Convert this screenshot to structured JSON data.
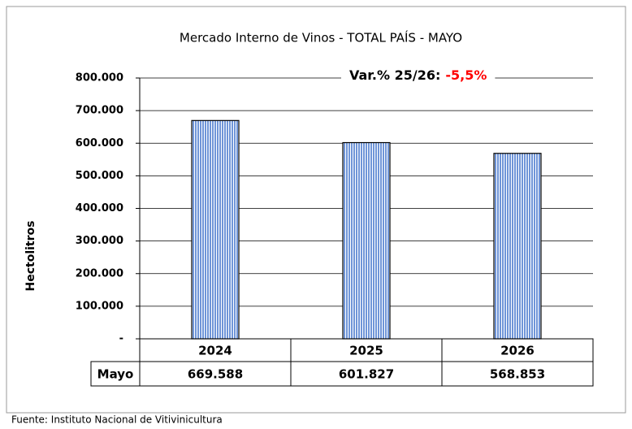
{
  "chart_data": {
    "type": "bar",
    "title": "Mercado Interno de Vinos  - TOTAL PAÍS  -  MAYO",
    "annotation": "Var.% 25/26:",
    "annotation_value": "-5,5%",
    "y_label": "Hectolitros",
    "categories": [
      "2024",
      "2025",
      "2026"
    ],
    "series": [
      {
        "name": "Mayo",
        "color": "#a9c4ee",
        "values": [
          669588,
          601827,
          568853
        ],
        "value_labels": [
          "669.588",
          "601.827",
          "568.853"
        ]
      }
    ],
    "ylim": [
      0,
      800000
    ],
    "yticks": [
      {
        "value": 0,
        "label": "-"
      },
      {
        "value": 100000,
        "label": "100.000"
      },
      {
        "value": 200000,
        "label": "200.000"
      },
      {
        "value": 300000,
        "label": "300.000"
      },
      {
        "value": 400000,
        "label": "400.000"
      },
      {
        "value": 500000,
        "label": "500.000"
      },
      {
        "value": 600000,
        "label": "600.000"
      },
      {
        "value": 700000,
        "label": "700.000"
      },
      {
        "value": 800000,
        "label": "800.000"
      }
    ],
    "grid": true,
    "source": "Fuente: Instituto Nacional de Vitivinicultura"
  }
}
